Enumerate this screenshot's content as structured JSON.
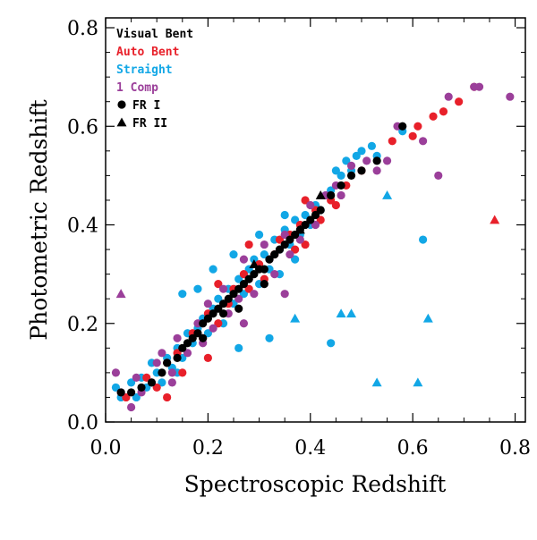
{
  "chart_data": {
    "type": "scatter",
    "xlabel": "Spectroscopic Redshift",
    "ylabel": "Photometric Redshift",
    "xlim": [
      0.0,
      0.82
    ],
    "ylim": [
      0.0,
      0.82
    ],
    "xticks": [
      0.0,
      0.2,
      0.4,
      0.6,
      0.8
    ],
    "yticks": [
      0.0,
      0.2,
      0.4,
      0.6,
      0.8
    ],
    "xtick_labels": [
      "0.0",
      "0.2",
      "0.4",
      "0.6",
      "0.8"
    ],
    "ytick_labels": [
      "0.0",
      "0.2",
      "0.4",
      "0.6",
      "0.8"
    ],
    "legend": {
      "placement": "top-left",
      "color_entries": [
        {
          "label": "Visual Bent",
          "color": "#000000"
        },
        {
          "label": "Auto Bent",
          "color": "#e8202a"
        },
        {
          "label": "Straight",
          "color": "#12a7e6"
        },
        {
          "label": "1 Comp",
          "color": "#9b3f9a"
        }
      ],
      "marker_entries": [
        {
          "label": "FR I",
          "marker": "circle"
        },
        {
          "label": "FR II",
          "marker": "triangle"
        }
      ]
    },
    "series": [
      {
        "name": "Straight",
        "color": "#12a7e6",
        "points": [
          [
            0.02,
            0.07
          ],
          [
            0.03,
            0.05
          ],
          [
            0.05,
            0.08
          ],
          [
            0.06,
            0.05
          ],
          [
            0.07,
            0.09
          ],
          [
            0.08,
            0.07
          ],
          [
            0.09,
            0.12
          ],
          [
            0.1,
            0.1
          ],
          [
            0.11,
            0.08
          ],
          [
            0.12,
            0.13
          ],
          [
            0.13,
            0.11
          ],
          [
            0.14,
            0.15
          ],
          [
            0.15,
            0.13
          ],
          [
            0.16,
            0.18
          ],
          [
            0.17,
            0.16
          ],
          [
            0.18,
            0.19
          ],
          [
            0.19,
            0.21
          ],
          [
            0.2,
            0.18
          ],
          [
            0.21,
            0.23
          ],
          [
            0.22,
            0.25
          ],
          [
            0.23,
            0.2
          ],
          [
            0.24,
            0.27
          ],
          [
            0.25,
            0.24
          ],
          [
            0.26,
            0.29
          ],
          [
            0.27,
            0.26
          ],
          [
            0.28,
            0.31
          ],
          [
            0.29,
            0.33
          ],
          [
            0.3,
            0.28
          ],
          [
            0.31,
            0.34
          ],
          [
            0.32,
            0.31
          ],
          [
            0.33,
            0.37
          ],
          [
            0.34,
            0.35
          ],
          [
            0.35,
            0.39
          ],
          [
            0.36,
            0.36
          ],
          [
            0.37,
            0.41
          ],
          [
            0.38,
            0.38
          ],
          [
            0.39,
            0.42
          ],
          [
            0.4,
            0.4
          ],
          [
            0.41,
            0.44
          ],
          [
            0.42,
            0.43
          ],
          [
            0.43,
            0.46
          ],
          [
            0.44,
            0.47
          ],
          [
            0.45,
            0.51
          ],
          [
            0.46,
            0.5
          ],
          [
            0.47,
            0.53
          ],
          [
            0.48,
            0.51
          ],
          [
            0.49,
            0.54
          ],
          [
            0.5,
            0.55
          ],
          [
            0.52,
            0.56
          ],
          [
            0.53,
            0.54
          ],
          [
            0.58,
            0.59
          ],
          [
            0.21,
            0.31
          ],
          [
            0.25,
            0.34
          ],
          [
            0.3,
            0.38
          ],
          [
            0.34,
            0.3
          ],
          [
            0.18,
            0.27
          ],
          [
            0.37,
            0.33
          ],
          [
            0.44,
            0.16
          ],
          [
            0.32,
            0.17
          ],
          [
            0.26,
            0.15
          ],
          [
            0.62,
            0.37
          ],
          [
            0.14,
            0.1
          ],
          [
            0.35,
            0.42
          ],
          [
            0.15,
            0.26
          ]
        ]
      },
      {
        "name": "Straight FR II",
        "color": "#12a7e6",
        "marker": "triangle",
        "points": [
          [
            0.55,
            0.46
          ],
          [
            0.46,
            0.22
          ],
          [
            0.48,
            0.22
          ],
          [
            0.63,
            0.21
          ],
          [
            0.53,
            0.08
          ],
          [
            0.61,
            0.08
          ],
          [
            0.37,
            0.21
          ]
        ]
      },
      {
        "name": "Auto Bent",
        "color": "#e8202a",
        "points": [
          [
            0.04,
            0.05
          ],
          [
            0.08,
            0.09
          ],
          [
            0.1,
            0.07
          ],
          [
            0.12,
            0.12
          ],
          [
            0.14,
            0.14
          ],
          [
            0.15,
            0.1
          ],
          [
            0.17,
            0.18
          ],
          [
            0.19,
            0.17
          ],
          [
            0.2,
            0.22
          ],
          [
            0.22,
            0.2
          ],
          [
            0.24,
            0.24
          ],
          [
            0.25,
            0.27
          ],
          [
            0.27,
            0.3
          ],
          [
            0.28,
            0.27
          ],
          [
            0.3,
            0.32
          ],
          [
            0.31,
            0.29
          ],
          [
            0.33,
            0.34
          ],
          [
            0.34,
            0.37
          ],
          [
            0.36,
            0.38
          ],
          [
            0.37,
            0.35
          ],
          [
            0.38,
            0.4
          ],
          [
            0.39,
            0.36
          ],
          [
            0.41,
            0.43
          ],
          [
            0.42,
            0.41
          ],
          [
            0.44,
            0.45
          ],
          [
            0.45,
            0.44
          ],
          [
            0.47,
            0.48
          ],
          [
            0.5,
            0.51
          ],
          [
            0.56,
            0.57
          ],
          [
            0.6,
            0.58
          ],
          [
            0.61,
            0.6
          ],
          [
            0.64,
            0.62
          ],
          [
            0.66,
            0.63
          ],
          [
            0.69,
            0.65
          ],
          [
            0.72,
            0.68
          ],
          [
            0.2,
            0.13
          ],
          [
            0.22,
            0.28
          ],
          [
            0.28,
            0.36
          ],
          [
            0.39,
            0.45
          ],
          [
            0.12,
            0.05
          ]
        ]
      },
      {
        "name": "Auto Bent FR II",
        "color": "#e8202a",
        "marker": "triangle",
        "points": [
          [
            0.76,
            0.41
          ]
        ]
      },
      {
        "name": "1 Comp",
        "color": "#9b3f9a",
        "points": [
          [
            0.02,
            0.1
          ],
          [
            0.03,
            0.06
          ],
          [
            0.05,
            0.03
          ],
          [
            0.06,
            0.09
          ],
          [
            0.07,
            0.06
          ],
          [
            0.09,
            0.08
          ],
          [
            0.1,
            0.12
          ],
          [
            0.11,
            0.14
          ],
          [
            0.13,
            0.1
          ],
          [
            0.14,
            0.17
          ],
          [
            0.16,
            0.14
          ],
          [
            0.18,
            0.2
          ],
          [
            0.19,
            0.16
          ],
          [
            0.2,
            0.24
          ],
          [
            0.21,
            0.19
          ],
          [
            0.23,
            0.27
          ],
          [
            0.24,
            0.22
          ],
          [
            0.26,
            0.25
          ],
          [
            0.27,
            0.33
          ],
          [
            0.28,
            0.29
          ],
          [
            0.29,
            0.26
          ],
          [
            0.31,
            0.36
          ],
          [
            0.32,
            0.33
          ],
          [
            0.33,
            0.3
          ],
          [
            0.35,
            0.38
          ],
          [
            0.36,
            0.34
          ],
          [
            0.38,
            0.37
          ],
          [
            0.4,
            0.44
          ],
          [
            0.41,
            0.4
          ],
          [
            0.43,
            0.46
          ],
          [
            0.45,
            0.48
          ],
          [
            0.46,
            0.46
          ],
          [
            0.48,
            0.52
          ],
          [
            0.51,
            0.53
          ],
          [
            0.53,
            0.51
          ],
          [
            0.55,
            0.53
          ],
          [
            0.57,
            0.6
          ],
          [
            0.62,
            0.57
          ],
          [
            0.65,
            0.5
          ],
          [
            0.67,
            0.66
          ],
          [
            0.72,
            0.68
          ],
          [
            0.79,
            0.66
          ],
          [
            0.73,
            0.68
          ],
          [
            0.27,
            0.2
          ],
          [
            0.35,
            0.26
          ],
          [
            0.13,
            0.08
          ]
        ]
      },
      {
        "name": "1 Comp FR II",
        "color": "#9b3f9a",
        "marker": "triangle",
        "points": [
          [
            0.03,
            0.26
          ]
        ]
      },
      {
        "name": "Visual Bent",
        "color": "#000000",
        "points": [
          [
            0.03,
            0.06
          ],
          [
            0.05,
            0.06
          ],
          [
            0.07,
            0.07
          ],
          [
            0.09,
            0.08
          ],
          [
            0.11,
            0.1
          ],
          [
            0.12,
            0.12
          ],
          [
            0.14,
            0.13
          ],
          [
            0.15,
            0.15
          ],
          [
            0.16,
            0.16
          ],
          [
            0.17,
            0.17
          ],
          [
            0.18,
            0.18
          ],
          [
            0.19,
            0.2
          ],
          [
            0.2,
            0.21
          ],
          [
            0.21,
            0.22
          ],
          [
            0.22,
            0.23
          ],
          [
            0.23,
            0.24
          ],
          [
            0.24,
            0.25
          ],
          [
            0.25,
            0.26
          ],
          [
            0.26,
            0.27
          ],
          [
            0.27,
            0.28
          ],
          [
            0.28,
            0.29
          ],
          [
            0.29,
            0.3
          ],
          [
            0.3,
            0.31
          ],
          [
            0.31,
            0.31
          ],
          [
            0.32,
            0.33
          ],
          [
            0.33,
            0.34
          ],
          [
            0.34,
            0.35
          ],
          [
            0.35,
            0.36
          ],
          [
            0.36,
            0.37
          ],
          [
            0.37,
            0.38
          ],
          [
            0.38,
            0.39
          ],
          [
            0.39,
            0.4
          ],
          [
            0.4,
            0.41
          ],
          [
            0.41,
            0.42
          ],
          [
            0.42,
            0.43
          ],
          [
            0.44,
            0.46
          ],
          [
            0.46,
            0.48
          ],
          [
            0.48,
            0.5
          ],
          [
            0.5,
            0.51
          ],
          [
            0.53,
            0.53
          ],
          [
            0.58,
            0.6
          ],
          [
            0.23,
            0.22
          ],
          [
            0.26,
            0.23
          ],
          [
            0.31,
            0.28
          ],
          [
            0.19,
            0.17
          ]
        ]
      },
      {
        "name": "Visual Bent FR II",
        "color": "#000000",
        "marker": "triangle",
        "points": [
          [
            0.38,
            0.39
          ],
          [
            0.29,
            0.32
          ],
          [
            0.42,
            0.46
          ]
        ]
      }
    ]
  }
}
